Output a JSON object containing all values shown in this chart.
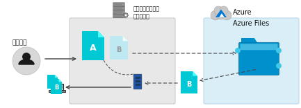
{
  "bg_color": "#ffffff",
  "azure_bg_color": "#daeef8",
  "local_box_color": "#e8e8e8",
  "title_onprem": "オンプレミスのフ\nァイル共有",
  "title_user": "ユーザー",
  "title_azure": "Azure",
  "title_azure_files": "Azure Files",
  "file_a_color": "#00c8d4",
  "file_b_light_color": "#b8eaf4",
  "file_b_cyan_color": "#00c8d4",
  "arrow_color": "#444444",
  "dotted_color": "#444444",
  "folder_color": "#0090cc",
  "folder_dark_color": "#006ea0",
  "cloud_color": "#c8c8c8",
  "server_color": "#888888",
  "person_color": "#1a1a1a",
  "user_circle_color": "#d8d8d8",
  "device_color": "#1a3a5c",
  "device_light": "#2255aa"
}
